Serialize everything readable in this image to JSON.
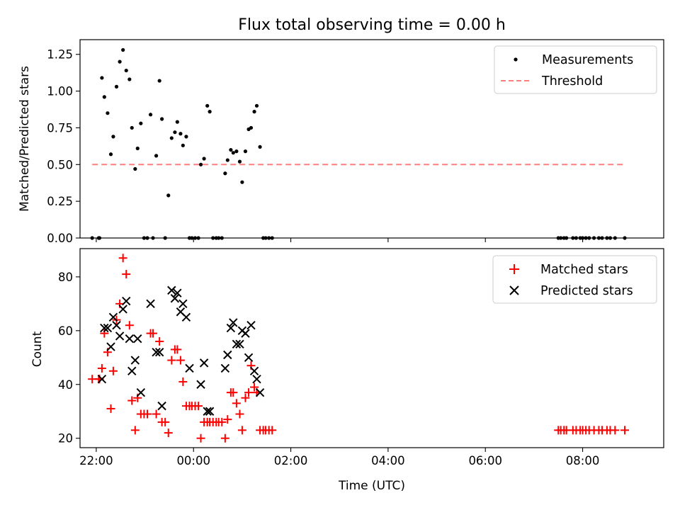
{
  "chart_data": [
    {
      "type": "scatter",
      "title": "Flux total observing time = 0.00 h",
      "xlabel": "",
      "ylabel": "Matched/Predicted stars",
      "xlim": [
        "21:40",
        "09:40"
      ],
      "ylim": [
        0,
        1.35
      ],
      "x_ticks": [
        "22:00",
        "00:00",
        "02:00",
        "04:00",
        "06:00",
        "08:00"
      ],
      "x_tick_labels_shown": false,
      "y_ticks": [
        0.0,
        0.25,
        0.5,
        0.75,
        1.0,
        1.25
      ],
      "y_tick_labels": [
        "0.00",
        "0.25",
        "0.50",
        "0.75",
        "1.00",
        "1.25"
      ],
      "grid": false,
      "legend_position": "top-right",
      "series": [
        {
          "name": "Measurements",
          "marker": "dot",
          "color": "#000000",
          "points": [
            [
              "21:55",
              0.0
            ],
            [
              "22:03",
              0.0
            ],
            [
              "22:04",
              0.0
            ],
            [
              "22:07",
              1.09
            ],
            [
              "22:10",
              0.96
            ],
            [
              "22:14",
              0.85
            ],
            [
              "22:18",
              0.57
            ],
            [
              "22:21",
              0.69
            ],
            [
              "22:25",
              1.03
            ],
            [
              "22:29",
              1.2
            ],
            [
              "22:33",
              1.28
            ],
            [
              "22:37",
              1.14
            ],
            [
              "22:41",
              1.08
            ],
            [
              "22:44",
              0.75
            ],
            [
              "22:48",
              0.47
            ],
            [
              "22:51",
              0.61
            ],
            [
              "22:55",
              0.78
            ],
            [
              "22:59",
              0.0
            ],
            [
              "23:03",
              0.0
            ],
            [
              "23:07",
              0.84
            ],
            [
              "23:10",
              0.0
            ],
            [
              "23:14",
              0.56
            ],
            [
              "23:18",
              1.07
            ],
            [
              "23:21",
              0.81
            ],
            [
              "23:25",
              0.0
            ],
            [
              "23:29",
              0.29
            ],
            [
              "23:33",
              0.68
            ],
            [
              "23:37",
              0.72
            ],
            [
              "23:40",
              0.79
            ],
            [
              "23:44",
              0.71
            ],
            [
              "23:47",
              0.63
            ],
            [
              "23:51",
              0.69
            ],
            [
              "23:55",
              0.0
            ],
            [
              "23:58",
              0.0
            ],
            [
              "00:02",
              0.0
            ],
            [
              "00:06",
              0.0
            ],
            [
              "00:09",
              0.5
            ],
            [
              "00:13",
              0.54
            ],
            [
              "00:17",
              0.9
            ],
            [
              "00:20",
              0.86
            ],
            [
              "00:24",
              0.0
            ],
            [
              "00:28",
              0.0
            ],
            [
              "00:31",
              0.0
            ],
            [
              "00:35",
              0.0
            ],
            [
              "00:39",
              0.44
            ],
            [
              "00:42",
              0.53
            ],
            [
              "00:46",
              0.6
            ],
            [
              "00:49",
              0.58
            ],
            [
              "00:53",
              0.59
            ],
            [
              "00:57",
              0.52
            ],
            [
              "01:00",
              0.38
            ],
            [
              "01:04",
              0.59
            ],
            [
              "01:08",
              0.74
            ],
            [
              "01:11",
              0.75
            ],
            [
              "01:15",
              0.86
            ],
            [
              "01:18",
              0.9
            ],
            [
              "01:22",
              0.62
            ],
            [
              "01:26",
              0.0
            ],
            [
              "01:29",
              0.0
            ],
            [
              "01:33",
              0.0
            ],
            [
              "01:37",
              0.0
            ],
            [
              "07:30",
              0.0
            ],
            [
              "07:33",
              0.0
            ],
            [
              "07:37",
              0.0
            ],
            [
              "07:40",
              0.0
            ],
            [
              "07:48",
              0.0
            ],
            [
              "07:52",
              0.0
            ],
            [
              "07:57",
              0.0
            ],
            [
              "08:00",
              0.0
            ],
            [
              "08:04",
              0.0
            ],
            [
              "08:08",
              0.0
            ],
            [
              "08:14",
              0.0
            ],
            [
              "08:20",
              0.0
            ],
            [
              "08:24",
              0.0
            ],
            [
              "08:30",
              0.0
            ],
            [
              "08:34",
              0.0
            ],
            [
              "08:40",
              0.0
            ],
            [
              "08:52",
              0.0
            ]
          ]
        },
        {
          "name": "Threshold",
          "style": "dashed",
          "color": "#ff7f7f",
          "points": [
            [
              "21:55",
              0.5
            ],
            [
              "08:52",
              0.5
            ]
          ]
        }
      ]
    },
    {
      "type": "scatter",
      "title": "",
      "xlabel": "Time (UTC)",
      "ylabel": "Count",
      "xlim": [
        "21:40",
        "09:40"
      ],
      "ylim": [
        16.5,
        90.5
      ],
      "x_ticks": [
        "22:00",
        "00:00",
        "02:00",
        "04:00",
        "06:00",
        "08:00"
      ],
      "x_tick_labels": [
        "22:00",
        "00:00",
        "02:00",
        "04:00",
        "06:00",
        "08:00"
      ],
      "y_ticks": [
        20,
        40,
        60,
        80
      ],
      "y_tick_labels": [
        "20",
        "40",
        "60",
        "80"
      ],
      "grid": false,
      "legend_position": "top-right",
      "series": [
        {
          "name": "Matched stars",
          "marker": "plus",
          "color": "#ff0000",
          "points": [
            [
              "21:55",
              42
            ],
            [
              "22:03",
              42
            ],
            [
              "22:04",
              42
            ],
            [
              "22:07",
              46
            ],
            [
              "22:10",
              59
            ],
            [
              "22:14",
              52
            ],
            [
              "22:18",
              31
            ],
            [
              "22:21",
              45
            ],
            [
              "22:25",
              64
            ],
            [
              "22:29",
              70
            ],
            [
              "22:33",
              87
            ],
            [
              "22:37",
              81
            ],
            [
              "22:41",
              62
            ],
            [
              "22:44",
              34
            ],
            [
              "22:48",
              23
            ],
            [
              "22:51",
              35
            ],
            [
              "22:55",
              29
            ],
            [
              "22:59",
              29
            ],
            [
              "23:03",
              29
            ],
            [
              "23:07",
              59
            ],
            [
              "23:10",
              59
            ],
            [
              "23:14",
              29
            ],
            [
              "23:18",
              56
            ],
            [
              "23:21",
              26
            ],
            [
              "23:25",
              26
            ],
            [
              "23:29",
              22
            ],
            [
              "23:33",
              49
            ],
            [
              "23:37",
              53
            ],
            [
              "23:40",
              53
            ],
            [
              "23:44",
              49
            ],
            [
              "23:47",
              41
            ],
            [
              "23:51",
              32
            ],
            [
              "23:55",
              32
            ],
            [
              "23:58",
              32
            ],
            [
              "00:02",
              32
            ],
            [
              "00:06",
              32
            ],
            [
              "00:09",
              20
            ],
            [
              "00:13",
              26
            ],
            [
              "00:17",
              26
            ],
            [
              "00:20",
              26
            ],
            [
              "00:24",
              26
            ],
            [
              "00:28",
              26
            ],
            [
              "00:31",
              26
            ],
            [
              "00:35",
              26
            ],
            [
              "00:39",
              20
            ],
            [
              "00:42",
              27
            ],
            [
              "00:46",
              37
            ],
            [
              "00:49",
              37
            ],
            [
              "00:53",
              33
            ],
            [
              "00:57",
              29
            ],
            [
              "01:00",
              23
            ],
            [
              "01:04",
              35
            ],
            [
              "01:08",
              37
            ],
            [
              "01:11",
              47
            ],
            [
              "01:15",
              39
            ],
            [
              "01:18",
              37
            ],
            [
              "01:22",
              23
            ],
            [
              "01:26",
              23
            ],
            [
              "01:29",
              23
            ],
            [
              "01:33",
              23
            ],
            [
              "01:37",
              23
            ],
            [
              "07:30",
              23
            ],
            [
              "07:33",
              23
            ],
            [
              "07:37",
              23
            ],
            [
              "07:40",
              23
            ],
            [
              "07:48",
              23
            ],
            [
              "07:52",
              23
            ],
            [
              "07:57",
              23
            ],
            [
              "08:00",
              23
            ],
            [
              "08:04",
              23
            ],
            [
              "08:08",
              23
            ],
            [
              "08:14",
              23
            ],
            [
              "08:20",
              23
            ],
            [
              "08:24",
              23
            ],
            [
              "08:30",
              23
            ],
            [
              "08:34",
              23
            ],
            [
              "08:40",
              23
            ],
            [
              "08:52",
              23
            ]
          ]
        },
        {
          "name": "Predicted stars",
          "marker": "x",
          "color": "#000000",
          "points": [
            [
              "22:07",
              42
            ],
            [
              "22:10",
              61
            ],
            [
              "22:14",
              61
            ],
            [
              "22:18",
              54
            ],
            [
              "22:21",
              65
            ],
            [
              "22:25",
              62
            ],
            [
              "22:29",
              58
            ],
            [
              "22:33",
              68
            ],
            [
              "22:37",
              71
            ],
            [
              "22:41",
              57
            ],
            [
              "22:44",
              45
            ],
            [
              "22:48",
              49
            ],
            [
              "22:51",
              57
            ],
            [
              "22:55",
              37
            ],
            [
              "23:07",
              70
            ],
            [
              "23:14",
              52
            ],
            [
              "23:18",
              52
            ],
            [
              "23:21",
              32
            ],
            [
              "23:33",
              75
            ],
            [
              "23:37",
              72
            ],
            [
              "23:40",
              74
            ],
            [
              "23:44",
              67
            ],
            [
              "23:47",
              70
            ],
            [
              "23:51",
              65
            ],
            [
              "23:55",
              46
            ],
            [
              "00:09",
              40
            ],
            [
              "00:13",
              48
            ],
            [
              "00:17",
              30
            ],
            [
              "00:20",
              30
            ],
            [
              "00:39",
              46
            ],
            [
              "00:42",
              51
            ],
            [
              "00:46",
              61
            ],
            [
              "00:49",
              63
            ],
            [
              "00:53",
              55
            ],
            [
              "00:57",
              55
            ],
            [
              "01:00",
              60
            ],
            [
              "01:04",
              59
            ],
            [
              "01:08",
              50
            ],
            [
              "01:11",
              62
            ],
            [
              "01:15",
              45
            ],
            [
              "01:18",
              42
            ],
            [
              "01:22",
              37
            ]
          ]
        }
      ]
    }
  ]
}
